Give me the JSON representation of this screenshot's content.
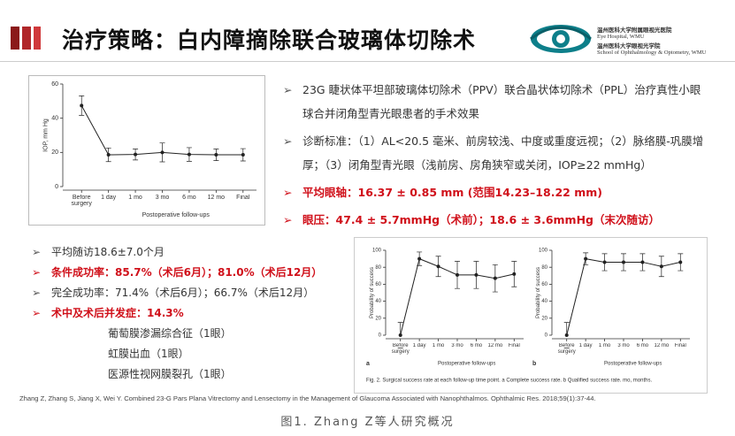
{
  "header": {
    "title": "治疗策略：白内障摘除联合玻璃体切除术",
    "logo": {
      "cn_hospital": "温州医科大学附属眼视光医院",
      "en_hospital": "Eye Hospital, WMU",
      "cn_school": "温州医科大学眼视光学院",
      "en_school": "School of Ophthalmology & Optometry, WMU"
    }
  },
  "right_bullets": [
    {
      "text": "23G 睫状体平坦部玻璃体切除术（PPV）联合晶状体切除术（PPL）治疗真性小眼球合并闭角型青光眼患者的手术效果",
      "highlight": false
    },
    {
      "text": "诊断标准：（1）AL<20.5 毫米、前房较浅、中度或重度远视；（2）脉络膜-巩膜增厚；（3）闭角型青光眼（浅前房、房角狭窄或关闭，IOP≥22 mmHg）",
      "highlight": false
    },
    {
      "text": "平均眼轴：16.37 ± 0.85 mm (范围14.23–18.22 mm)",
      "highlight": true
    },
    {
      "text": "眼压：47.4 ± 5.7mmHg（术前）；18.6 ± 3.6mmHg（末次随访）",
      "highlight": true
    }
  ],
  "left_bullets": [
    {
      "text": "平均随访18.6±7.0个月",
      "highlight": false
    },
    {
      "text": "条件成功率：85.7%（术后6月）；81.0%（术后12月）",
      "highlight": true
    },
    {
      "text": "完全成功率：71.4%（术后6月）；66.7%（术后12月）",
      "highlight": false
    },
    {
      "text": "术中及术后并发症：14.3%",
      "highlight": true
    }
  ],
  "left_subitems": [
    "葡萄膜渗漏综合征（1眼）",
    "虹膜出血（1眼）",
    "医源性视网膜裂孔（1眼）"
  ],
  "chart_data": [
    {
      "type": "line",
      "ylabel": "IOP, mm Hg",
      "xlabel": "Postoperative follow-ups",
      "categories": [
        "Before surgery",
        "1 day",
        "1 mo",
        "3 mo",
        "6 mo",
        "12 mo",
        "Final"
      ],
      "values": [
        47.4,
        18.6,
        18.8,
        20,
        18.8,
        18.6,
        18.6
      ],
      "errors": [
        5.7,
        4,
        3.2,
        5.5,
        4,
        3.4,
        3.6
      ],
      "ylim": [
        0,
        60
      ],
      "yticks": [
        0,
        20,
        40,
        60
      ],
      "color": "#222222"
    },
    {
      "type": "line",
      "label": "a",
      "ylabel": "Probability of success",
      "xlabel": "Postoperative follow-ups",
      "categories": [
        "Before surgery",
        "1 day",
        "1 mo",
        "3 mo",
        "6 mo",
        "12 mo",
        "Final"
      ],
      "values": [
        0,
        90,
        81,
        71,
        71,
        67,
        72
      ],
      "errors": [
        15,
        8,
        12,
        16,
        16,
        16,
        15
      ],
      "ylim": [
        0,
        100
      ],
      "yticks": [
        0,
        20,
        40,
        60,
        80,
        100
      ],
      "color": "#222222"
    },
    {
      "type": "line",
      "label": "b",
      "ylabel": "Probability of success",
      "xlabel": "Postoperative follow-ups",
      "categories": [
        "Before surgery",
        "1 day",
        "1 mo",
        "3 mo",
        "6 mo",
        "12 mo",
        "Final"
      ],
      "values": [
        0,
        90,
        86,
        86,
        86,
        81,
        86
      ],
      "errors": [
        15,
        7,
        10,
        10,
        10,
        12,
        10
      ],
      "ylim": [
        0,
        100
      ],
      "yticks": [
        0,
        20,
        40,
        60,
        80,
        100
      ],
      "color": "#222222"
    }
  ],
  "figure_caption": "Fig. 2. Surgical success rate at each follow-up time point. a Complete success rate. b Qualified success rate. mo, months.",
  "reference": "Zhang Z, Zhang S, Jiang X, Wei Y. Combined 23-G Pars Plana Vitrectomy and Lensectomy in the Management of Glaucoma Associated with Nanophthalmos. Ophthalmic Res. 2018;59(1):37-44.",
  "caption": "图1. Zhang Z等人研究概况"
}
